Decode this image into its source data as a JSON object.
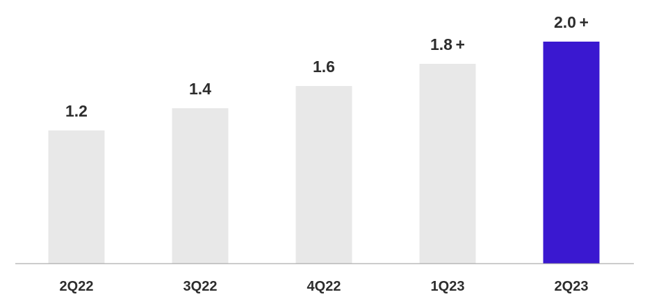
{
  "chart_data": {
    "type": "bar",
    "title": "",
    "xlabel": "",
    "ylabel": "",
    "categories": [
      "2Q22",
      "3Q22",
      "4Q22",
      "1Q23",
      "2Q23"
    ],
    "values": [
      1.2,
      1.4,
      1.6,
      1.8,
      2.0
    ],
    "value_labels": [
      "1.2",
      "1.4",
      "1.6",
      "1.8 +",
      "2.0 +"
    ],
    "highlight_category": "2Q23",
    "ylim": [
      0,
      2.0
    ],
    "grid": false,
    "legend": "none",
    "colors": {
      "default_bar": "#e8e8e8",
      "highlight_bar": "#3a18d0",
      "axis": "#9a9a9a",
      "text": "#2d2d2d"
    }
  }
}
